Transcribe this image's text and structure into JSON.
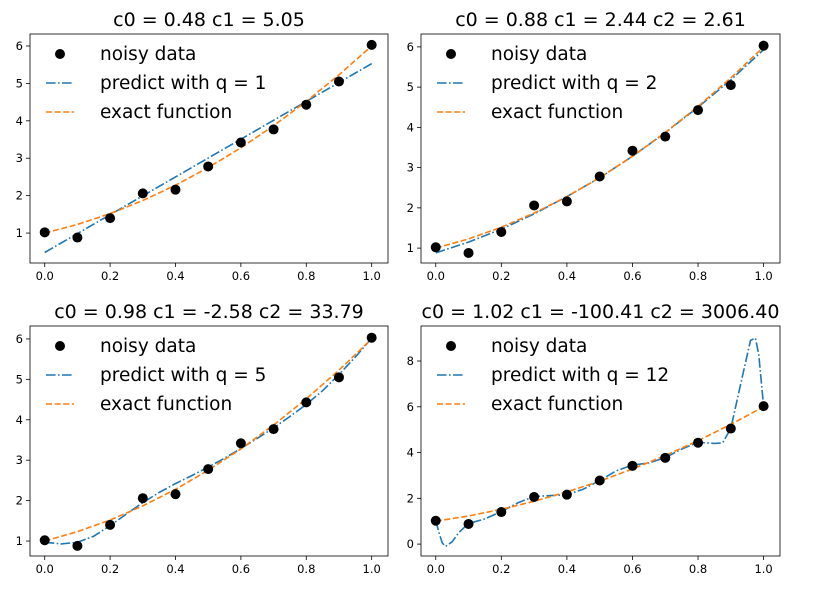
{
  "chart_data": [
    {
      "type": "line",
      "title": "c0 = 0.48 c1 = 5.05",
      "xlim": [
        -0.045,
        1.05
      ],
      "ylim": [
        0.2,
        6.32
      ],
      "xticks": [
        "0.0",
        "0.2",
        "0.4",
        "0.6",
        "0.8",
        "1.0"
      ],
      "yticks": [
        "1",
        "2",
        "3",
        "4",
        "5",
        "6"
      ],
      "legend_position": "upper-left",
      "grid": false,
      "series": [
        {
          "name": "noisy data",
          "kind": "scatter",
          "color": "#000000",
          "x": [
            0,
            0.1,
            0.2,
            0.3,
            0.4,
            0.5,
            0.6,
            0.7,
            0.8,
            0.9,
            1.0
          ],
          "y": [
            1.02,
            0.88,
            1.4,
            2.06,
            2.16,
            2.78,
            3.42,
            3.77,
            4.43,
            5.05,
            6.03
          ]
        },
        {
          "name": "predict with q = 1",
          "kind": "dashdot",
          "color": "#1f77b4",
          "x": [
            0,
            1
          ],
          "y": [
            0.48,
            5.53
          ]
        },
        {
          "name": "exact function",
          "kind": "dashed",
          "color": "#ff7f0e",
          "x": [
            0,
            0.1,
            0.2,
            0.3,
            0.4,
            0.5,
            0.6,
            0.7,
            0.8,
            0.9,
            1.0
          ],
          "y": [
            1,
            1.23,
            1.52,
            1.87,
            2.28,
            2.75,
            3.28,
            3.87,
            4.52,
            5.23,
            6
          ]
        }
      ]
    },
    {
      "type": "line",
      "title": "c0 = 0.88 c1 = 2.44 c2 = 2.61",
      "xlim": [
        -0.045,
        1.05
      ],
      "ylim": [
        0.63,
        6.32
      ],
      "xticks": [
        "0.0",
        "0.2",
        "0.4",
        "0.6",
        "0.8",
        "1.0"
      ],
      "yticks": [
        "1",
        "2",
        "3",
        "4",
        "5",
        "6"
      ],
      "legend_position": "upper-left",
      "grid": false,
      "series": [
        {
          "name": "noisy data",
          "kind": "scatter",
          "color": "#000000",
          "x": [
            0,
            0.1,
            0.2,
            0.3,
            0.4,
            0.5,
            0.6,
            0.7,
            0.8,
            0.9,
            1.0
          ],
          "y": [
            1.02,
            0.88,
            1.4,
            2.06,
            2.16,
            2.78,
            3.42,
            3.77,
            4.43,
            5.05,
            6.03
          ]
        },
        {
          "name": "predict with q = 2",
          "kind": "dashdot",
          "color": "#1f77b4",
          "x": [
            0,
            0.1,
            0.2,
            0.3,
            0.4,
            0.5,
            0.6,
            0.7,
            0.8,
            0.9,
            1.0
          ],
          "y": [
            0.88,
            1.15,
            1.47,
            1.85,
            2.28,
            2.75,
            3.28,
            3.87,
            4.5,
            5.18,
            5.93
          ]
        },
        {
          "name": "exact function",
          "kind": "dashed",
          "color": "#ff7f0e",
          "x": [
            0,
            0.1,
            0.2,
            0.3,
            0.4,
            0.5,
            0.6,
            0.7,
            0.8,
            0.9,
            1.0
          ],
          "y": [
            1,
            1.23,
            1.52,
            1.87,
            2.28,
            2.75,
            3.28,
            3.87,
            4.52,
            5.23,
            6
          ]
        }
      ]
    },
    {
      "type": "line",
      "title": "c0 = 0.98 c1 = -2.58 c2 = 33.79",
      "xlim": [
        -0.045,
        1.05
      ],
      "ylim": [
        0.63,
        6.32
      ],
      "xticks": [
        "0.0",
        "0.2",
        "0.4",
        "0.6",
        "0.8",
        "1.0"
      ],
      "yticks": [
        "1",
        "2",
        "3",
        "4",
        "5",
        "6"
      ],
      "legend_position": "upper-left",
      "grid": false,
      "series": [
        {
          "name": "noisy data",
          "kind": "scatter",
          "color": "#000000",
          "x": [
            0,
            0.1,
            0.2,
            0.3,
            0.4,
            0.5,
            0.6,
            0.7,
            0.8,
            0.9,
            1.0
          ],
          "y": [
            1.02,
            0.88,
            1.4,
            2.06,
            2.16,
            2.78,
            3.42,
            3.77,
            4.43,
            5.05,
            6.03
          ]
        },
        {
          "name": "predict with q = 5",
          "kind": "dashdot",
          "color": "#1f77b4",
          "x": [
            0,
            0.05,
            0.1,
            0.15,
            0.2,
            0.25,
            0.3,
            0.35,
            0.4,
            0.45,
            0.5,
            0.55,
            0.6,
            0.65,
            0.7,
            0.75,
            0.8,
            0.85,
            0.9,
            0.95,
            1.0
          ],
          "y": [
            0.97,
            0.93,
            0.97,
            1.12,
            1.38,
            1.67,
            1.95,
            2.2,
            2.42,
            2.62,
            2.83,
            3.05,
            3.29,
            3.54,
            3.8,
            4.08,
            4.38,
            4.72,
            5.12,
            5.55,
            6.02
          ]
        },
        {
          "name": "exact function",
          "kind": "dashed",
          "color": "#ff7f0e",
          "x": [
            0,
            0.1,
            0.2,
            0.3,
            0.4,
            0.5,
            0.6,
            0.7,
            0.8,
            0.9,
            1.0
          ],
          "y": [
            1,
            1.23,
            1.52,
            1.87,
            2.28,
            2.75,
            3.28,
            3.87,
            4.52,
            5.23,
            6
          ]
        }
      ]
    },
    {
      "type": "line",
      "title": "c0 = 1.02 c1 = -100.41 c2 = 3006.40",
      "xlim": [
        -0.045,
        1.05
      ],
      "ylim": [
        -0.52,
        9.53
      ],
      "xticks": [
        "0.0",
        "0.2",
        "0.4",
        "0.6",
        "0.8",
        "1.0"
      ],
      "yticks": [
        "0",
        "2",
        "4",
        "6",
        "8"
      ],
      "legend_position": "upper-left",
      "grid": false,
      "series": [
        {
          "name": "noisy data",
          "kind": "scatter",
          "color": "#000000",
          "x": [
            0,
            0.1,
            0.2,
            0.3,
            0.4,
            0.5,
            0.6,
            0.7,
            0.8,
            0.9,
            1.0
          ],
          "y": [
            1.02,
            0.88,
            1.4,
            2.06,
            2.16,
            2.78,
            3.42,
            3.77,
            4.43,
            5.05,
            6.03
          ]
        },
        {
          "name": "predict with q = 12",
          "kind": "dashdot",
          "color": "#1f77b4",
          "x": [
            0,
            0.01,
            0.02,
            0.03,
            0.05,
            0.07,
            0.1,
            0.15,
            0.2,
            0.25,
            0.3,
            0.35,
            0.4,
            0.45,
            0.5,
            0.55,
            0.6,
            0.65,
            0.7,
            0.75,
            0.8,
            0.85,
            0.875,
            0.9,
            0.93,
            0.96,
            0.975,
            0.985,
            1.0
          ],
          "y": [
            1.02,
            0.5,
            0.05,
            -0.1,
            0.1,
            0.5,
            0.9,
            1.1,
            1.42,
            1.8,
            2.08,
            2.12,
            2.16,
            2.4,
            2.78,
            3.2,
            3.45,
            3.55,
            3.78,
            4.15,
            4.45,
            4.4,
            4.42,
            5.05,
            7.0,
            8.9,
            9.0,
            8.3,
            6.02
          ]
        },
        {
          "name": "exact function",
          "kind": "dashed",
          "color": "#ff7f0e",
          "x": [
            0,
            0.1,
            0.2,
            0.3,
            0.4,
            0.5,
            0.6,
            0.7,
            0.8,
            0.9,
            1.0
          ],
          "y": [
            1,
            1.23,
            1.52,
            1.87,
            2.28,
            2.75,
            3.28,
            3.87,
            4.52,
            5.23,
            6
          ]
        }
      ]
    }
  ]
}
